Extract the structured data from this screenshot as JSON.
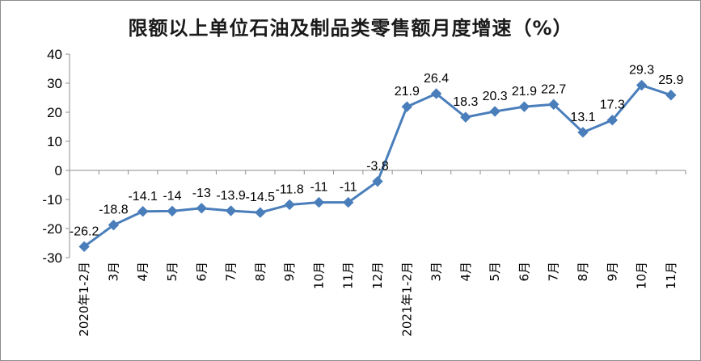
{
  "chart_data": {
    "type": "line",
    "title": "限额以上单位石油及制品类零售额月度增速（%）",
    "xlabel": "",
    "ylabel": "",
    "categories": [
      "2020年1-2月",
      "3月",
      "4月",
      "5月",
      "6月",
      "7月",
      "8月",
      "9月",
      "10月",
      "11月",
      "12月",
      "2021年1-2月",
      "3月",
      "4月",
      "5月",
      "6月",
      "7月",
      "8月",
      "9月",
      "10月",
      "11月"
    ],
    "series": [
      {
        "values": [
          -26.2,
          -18.8,
          -14.1,
          -14,
          -13,
          -13.9,
          -14.5,
          -11.8,
          -11,
          -11,
          -3.8,
          21.9,
          26.4,
          18.3,
          20.3,
          21.9,
          22.7,
          13.1,
          17.3,
          29.3,
          25.9
        ],
        "labels": [
          "-26.2",
          "-18.8",
          "-14.1",
          "-14",
          "-13",
          "-13.9",
          "-14.5",
          "-11.8",
          "-11",
          "-11",
          "-3.8",
          "21.9",
          "26.4",
          "18.3",
          "20.3",
          "21.9",
          "22.7",
          "13.1",
          "17.3",
          "29.3",
          "25.9"
        ],
        "color": "#4a7ebb"
      }
    ],
    "ylim": [
      -30,
      40
    ],
    "yticks": [
      "-30",
      "-20",
      "-10",
      "0",
      "10",
      "20",
      "30",
      "40"
    ],
    "grid": false,
    "marker": "diamond"
  }
}
